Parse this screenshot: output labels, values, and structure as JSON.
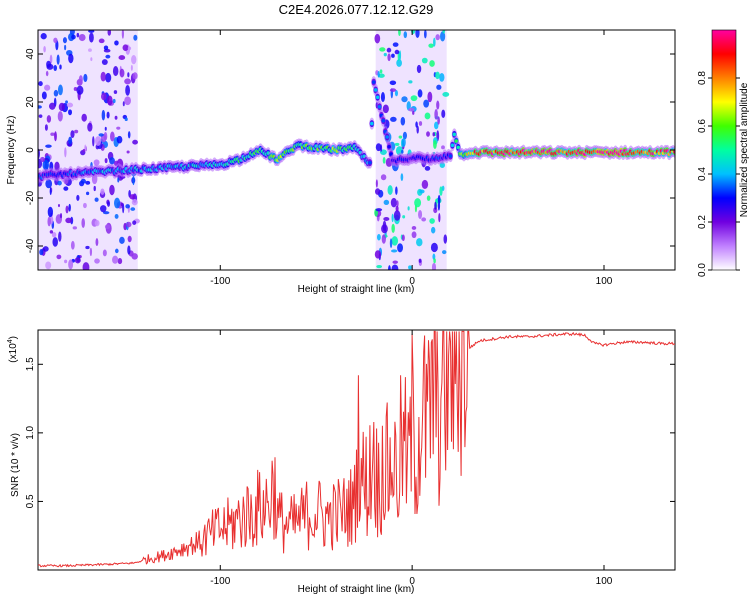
{
  "figure": {
    "title": "C2E4.2026.077.12.12.G29"
  },
  "chart_data": [
    {
      "type": "heatmap",
      "xlabel": "Height of straight line (km)",
      "ylabel": "Frequency (Hz)",
      "xlim": [
        -195,
        137
      ],
      "ylim": [
        -50,
        50
      ],
      "x_ticks": [
        -100,
        0,
        100
      ],
      "y_ticks": [
        -40,
        -20,
        0,
        20,
        40
      ],
      "colorbar": {
        "label": "Normalized spectral amplitude",
        "range": [
          0.0,
          1.0
        ],
        "ticks": [
          0.0,
          0.2,
          0.4,
          0.6,
          0.8
        ],
        "colors": [
          "#ffffff",
          "#c080ff",
          "#7000e0",
          "#0000ff",
          "#00c0ff",
          "#00ffa0",
          "#40ff00",
          "#ffff00",
          "#ff8000",
          "#ff0000",
          "#ff00a0"
        ]
      },
      "signal_track": {
        "x": [
          -195,
          -180,
          -160,
          -140,
          -120,
          -100,
          -90,
          -80,
          -70,
          -60,
          -50,
          -40,
          -30,
          -22,
          -20,
          -10,
          0,
          10,
          20,
          22,
          25,
          30,
          40,
          60,
          80,
          100,
          120,
          137
        ],
        "y": [
          -11,
          -10,
          -9,
          -8,
          -7,
          -6,
          -4,
          0,
          -4,
          2,
          1,
          0,
          1,
          -6,
          28,
          -5,
          -3,
          -4,
          -2,
          7,
          -2,
          -1,
          -1,
          -1,
          -1,
          -1,
          -1,
          -1
        ],
        "amplitude": [
          0.3,
          0.35,
          0.4,
          0.4,
          0.4,
          0.45,
          0.5,
          0.5,
          0.6,
          0.55,
          0.55,
          0.6,
          0.5,
          0.4,
          0.4,
          0.3,
          0.25,
          0.3,
          0.3,
          0.45,
          0.55,
          0.8,
          0.9,
          0.95,
          0.9,
          1.0,
          0.9,
          0.85
        ]
      },
      "noise_regions": [
        {
          "x_range": [
            -195,
            -143
          ],
          "level": 0.2
        },
        {
          "x_range": [
            -19,
            18
          ],
          "level": 0.3
        }
      ]
    },
    {
      "type": "line",
      "xlabel": "Height of straight line (km)",
      "ylabel": "SNR (10 * v/v)",
      "y_multiplier": "(x10",
      "y_multiplier_exp": "4",
      "y_multiplier_close": ")",
      "xlim": [
        -195,
        137
      ],
      "ylim": [
        0.0,
        1.75
      ],
      "x_ticks": [
        -100,
        0,
        100
      ],
      "y_ticks": [
        0.5,
        1.0,
        1.5
      ],
      "series": [
        {
          "color": "#e83030",
          "x": [
            -195,
            -180,
            -160,
            -145,
            -140,
            -130,
            -120,
            -110,
            -100,
            -95,
            -90,
            -85,
            -80,
            -75,
            -72,
            -70,
            -65,
            -60,
            -55,
            -50,
            -45,
            -40,
            -35,
            -30,
            -28,
            -25,
            -22,
            -20,
            -18,
            -15,
            -12,
            -10,
            -8,
            -5,
            -2,
            0,
            2,
            5,
            8,
            10,
            12,
            15,
            18,
            20,
            25,
            30,
            35,
            40,
            50,
            60,
            70,
            80,
            85,
            90,
            95,
            100,
            110,
            120,
            130,
            137
          ],
          "y": [
            0.03,
            0.03,
            0.04,
            0.05,
            0.07,
            0.1,
            0.15,
            0.2,
            0.28,
            0.3,
            0.35,
            0.38,
            0.42,
            0.45,
            0.6,
            0.35,
            0.3,
            0.32,
            0.38,
            0.4,
            0.35,
            0.38,
            0.4,
            0.45,
            0.9,
            0.55,
            0.65,
            0.85,
            0.55,
            0.75,
            0.65,
            0.8,
            0.6,
            0.9,
            0.7,
            1.0,
            0.8,
            1.1,
            0.95,
            1.2,
            1.3,
            1.1,
            1.4,
            1.5,
            1.55,
            1.62,
            1.67,
            1.68,
            1.7,
            1.7,
            1.71,
            1.72,
            1.72,
            1.71,
            1.65,
            1.64,
            1.66,
            1.66,
            1.65,
            1.65
          ]
        }
      ]
    }
  ]
}
